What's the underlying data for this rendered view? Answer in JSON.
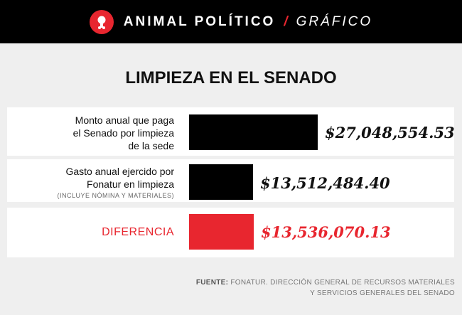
{
  "header": {
    "brand": "ANIMAL POLÍTICO",
    "separator": "/",
    "section": "GRÁFICO"
  },
  "chart_data": {
    "type": "bar",
    "title": "LIMPIEZA EN EL SENADO",
    "categories": [
      {
        "lines": [
          "Monto anual que paga",
          "el Senado por limpieza",
          "de la sede"
        ],
        "note": ""
      },
      {
        "lines": [
          "Gasto anual ejercido por",
          "Fonatur en limpieza"
        ],
        "note": "(INCLUYE NÓMINA Y MATERIALES)"
      },
      {
        "lines": [
          "DIFERENCIA"
        ],
        "note": ""
      }
    ],
    "values": [
      27048554.53,
      13512484.4,
      13536070.13
    ],
    "value_labels": [
      "$27,048,554.53",
      "$13,512,484.40",
      "$13,536,070.13"
    ],
    "colors": [
      "#000000",
      "#000000",
      "#e8262f"
    ],
    "xlabel": "",
    "ylabel": ""
  },
  "source": {
    "prefix": "FUENTE:",
    "line1": " FONATUR. DIRECCIÓN GENERAL DE RECURSOS MATERIALES",
    "line2": "Y SERVICIOS GENERALES DEL  SENADO"
  }
}
